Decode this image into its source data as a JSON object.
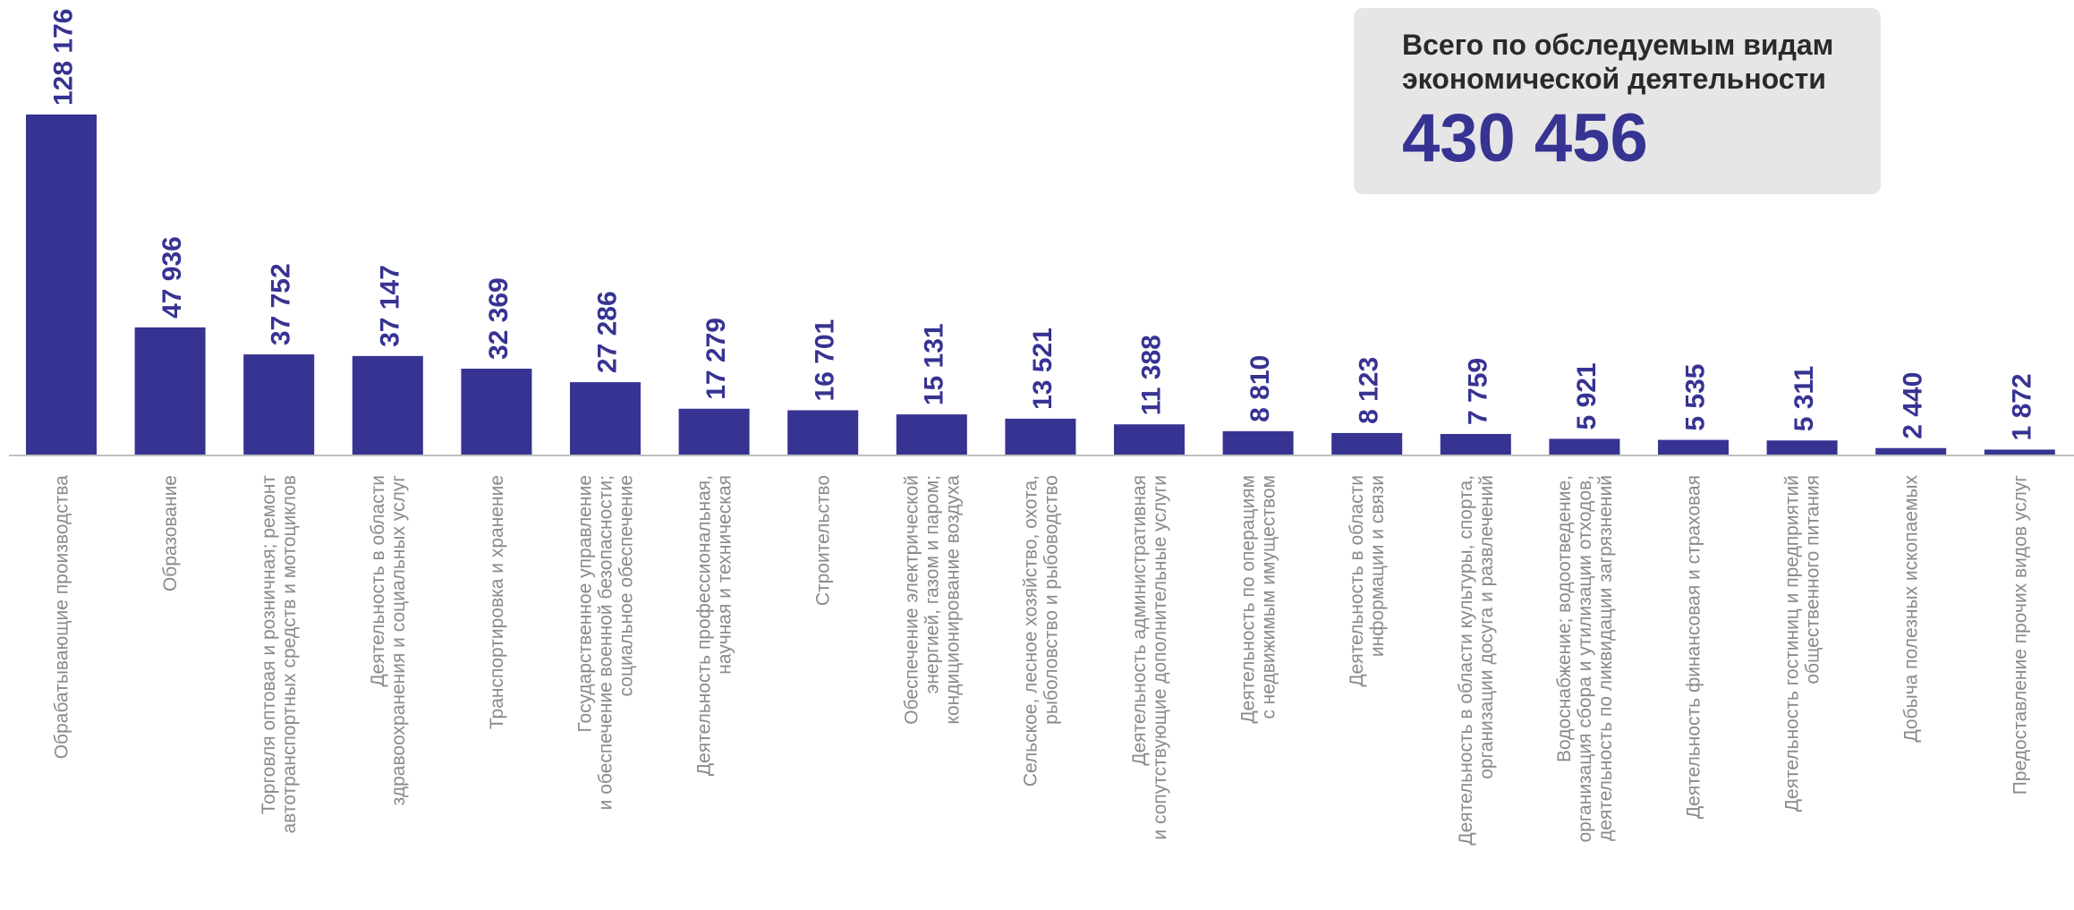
{
  "summary": {
    "label": "Всего по обследуемым видам экономической деятельности",
    "value": "430 456"
  },
  "colors": {
    "bar": "#363392",
    "value_label": "#363392",
    "category_label": "#8a8a8a",
    "axis": "#bfbfbf",
    "summary_background": "#e6e6e6"
  },
  "chart_data": {
    "type": "bar",
    "title": "",
    "xlabel": "",
    "ylabel": "",
    "grid": false,
    "ylim": [
      0,
      128176
    ],
    "categories": [
      [
        "Обрабатывающие производства"
      ],
      [
        "Образование"
      ],
      [
        "Торговля оптовая и розничная; ремонт",
        "автотранспортных средств и мотоциклов"
      ],
      [
        "Деятельность в области",
        "здравоохранения  и социальных услуг"
      ],
      [
        "Транспортировка и хранение"
      ],
      [
        "Государственное управление",
        "и обеспечение военной безопасности;",
        "социальное обеспечение"
      ],
      [
        "Деятельность профессиональная,",
        "научная и техническая"
      ],
      [
        "Строительство"
      ],
      [
        "Обеспечение электрической",
        "энергией, газом и паром;",
        "кондиционирование воздуха"
      ],
      [
        "Сельское, лесное хозяйство, охота,",
        "рыболовство и рыбоводство"
      ],
      [
        "Деятельность административная",
        "и сопутствующие дополнительные услуги"
      ],
      [
        "Деятельность по операциям",
        "с недвижимым имуществом"
      ],
      [
        "Деятельность в области",
        "информации и связи"
      ],
      [
        "Деятельность в области культуры, спорта,",
        "организации досуга и развлечений"
      ],
      [
        "Водоснабжение; водоотведение,",
        "организация сбора и утилизации отходов,",
        "деятельность по ликвидации загрязнений"
      ],
      [
        "Деятельность финансовая и страховая"
      ],
      [
        "Деятельность гостиниц и предприятий",
        "общественного питания"
      ],
      [
        "Добыча полезных ископаемых"
      ],
      [
        "Предоставление прочих видов услуг"
      ]
    ],
    "values": [
      128176,
      47936,
      37752,
      37147,
      32369,
      27286,
      17279,
      16701,
      15131,
      13521,
      11388,
      8810,
      8123,
      7759,
      5921,
      5535,
      5311,
      2440,
      1872
    ],
    "value_labels": [
      "128 176",
      "47 936",
      "37 752",
      "37 147",
      "32 369",
      "27 286",
      "17 279",
      "16 701",
      "15 131",
      "13 521",
      "11 388",
      "8 810",
      "8 123",
      "7 759",
      "5 921",
      "5 535",
      "5 311",
      "2 440",
      "1 872"
    ]
  }
}
